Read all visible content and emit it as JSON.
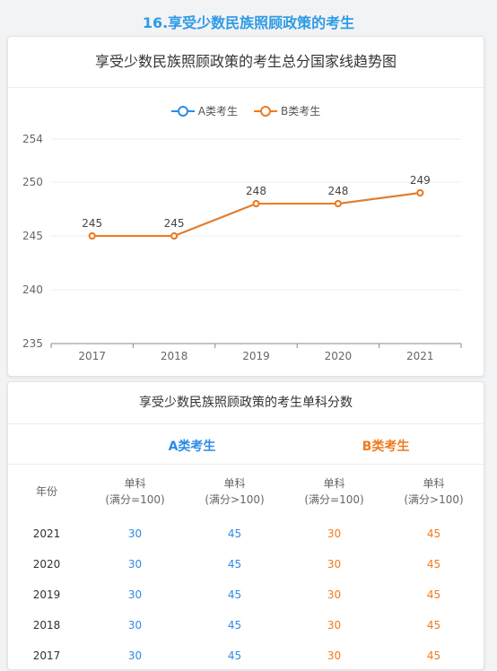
{
  "page": {
    "section_title": "16.享受少数民族照顾政策的考生"
  },
  "chart": {
    "header": "享受少数民族照顾政策的考生总分国家线趋势图",
    "legend": [
      {
        "name": "A类考生",
        "color": "#2e8be6"
      },
      {
        "name": "B类考生",
        "color": "#f07a1d"
      }
    ]
  },
  "chart_data": {
    "type": "line",
    "title": "享受少数民族照顾政策的考生总分国家线趋势图",
    "x": [
      "2017",
      "2018",
      "2019",
      "2020",
      "2021"
    ],
    "yticks": [
      235,
      240,
      245,
      250,
      254
    ],
    "ylim": [
      235,
      254
    ],
    "grid": true,
    "legend_position": "top-center",
    "series": [
      {
        "name": "A类考生",
        "color": "#2e8be6",
        "values": [
          245,
          245,
          248,
          248,
          249
        ]
      },
      {
        "name": "B类考生",
        "color": "#f07a1d",
        "values": [
          245,
          245,
          248,
          248,
          249
        ]
      }
    ]
  },
  "table": {
    "header": "享受少数民族照顾政策的考生单科分数",
    "group_a": "A类考生",
    "group_b": "B类考生",
    "columns": {
      "year": "年份",
      "a1": {
        "line1": "单科",
        "line2": "(满分=100)"
      },
      "a2": {
        "line1": "单科",
        "line2": "(满分>100)"
      },
      "b1": {
        "line1": "单科",
        "line2": "(满分=100)"
      },
      "b2": {
        "line1": "单科",
        "line2": "(满分>100)"
      }
    },
    "rows": [
      {
        "year": "2021",
        "a1": "30",
        "a2": "45",
        "b1": "30",
        "b2": "45"
      },
      {
        "year": "2020",
        "a1": "30",
        "a2": "45",
        "b1": "30",
        "b2": "45"
      },
      {
        "year": "2019",
        "a1": "30",
        "a2": "45",
        "b1": "30",
        "b2": "45"
      },
      {
        "year": "2018",
        "a1": "30",
        "a2": "45",
        "b1": "30",
        "b2": "45"
      },
      {
        "year": "2017",
        "a1": "30",
        "a2": "45",
        "b1": "30",
        "b2": "45"
      }
    ]
  }
}
